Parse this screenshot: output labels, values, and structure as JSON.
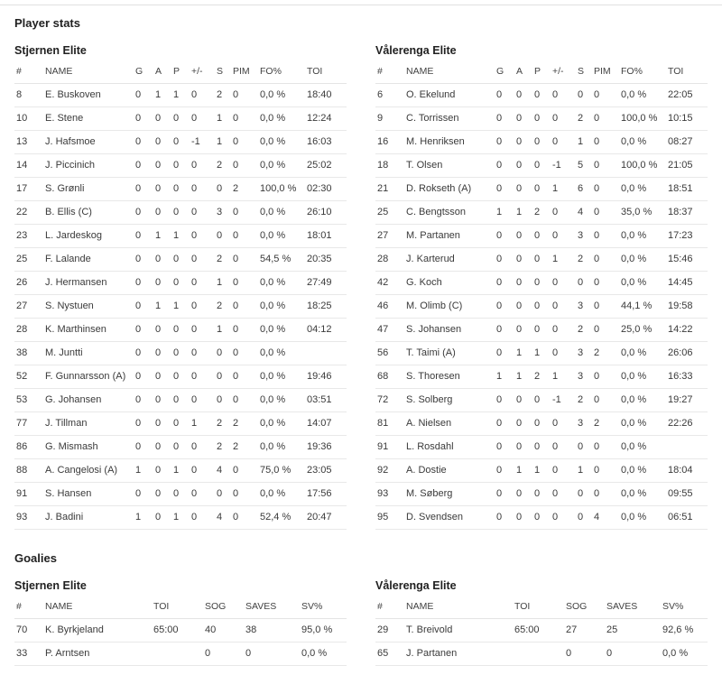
{
  "player_stats": {
    "title": "Player stats",
    "columns": [
      "#",
      "NAME",
      "G",
      "A",
      "P",
      "+/-",
      "S",
      "PIM",
      "FO%",
      "TOI"
    ],
    "teams": [
      {
        "name": "Stjernen Elite",
        "rows": [
          [
            "8",
            "E. Buskoven",
            "0",
            "1",
            "1",
            "0",
            "2",
            "0",
            "0,0 %",
            "18:40"
          ],
          [
            "10",
            "E. Stene",
            "0",
            "0",
            "0",
            "0",
            "1",
            "0",
            "0,0 %",
            "12:24"
          ],
          [
            "13",
            "J. Hafsmoe",
            "0",
            "0",
            "0",
            "-1",
            "1",
            "0",
            "0,0 %",
            "16:03"
          ],
          [
            "14",
            "J. Piccinich",
            "0",
            "0",
            "0",
            "0",
            "2",
            "0",
            "0,0 %",
            "25:02"
          ],
          [
            "17",
            "S. Grønli",
            "0",
            "0",
            "0",
            "0",
            "0",
            "2",
            "100,0 %",
            "02:30"
          ],
          [
            "22",
            "B. Ellis (C)",
            "0",
            "0",
            "0",
            "0",
            "3",
            "0",
            "0,0 %",
            "26:10"
          ],
          [
            "23",
            "L. Jardeskog",
            "0",
            "1",
            "1",
            "0",
            "0",
            "0",
            "0,0 %",
            "18:01"
          ],
          [
            "25",
            "F. Lalande",
            "0",
            "0",
            "0",
            "0",
            "2",
            "0",
            "54,5 %",
            "20:35"
          ],
          [
            "26",
            "J. Hermansen",
            "0",
            "0",
            "0",
            "0",
            "1",
            "0",
            "0,0 %",
            "27:49"
          ],
          [
            "27",
            "S. Nystuen",
            "0",
            "1",
            "1",
            "0",
            "2",
            "0",
            "0,0 %",
            "18:25"
          ],
          [
            "28",
            "K. Marthinsen",
            "0",
            "0",
            "0",
            "0",
            "1",
            "0",
            "0,0 %",
            "04:12"
          ],
          [
            "38",
            "M. Juntti",
            "0",
            "0",
            "0",
            "0",
            "0",
            "0",
            "0,0 %",
            ""
          ],
          [
            "52",
            "F. Gunnarsson (A)",
            "0",
            "0",
            "0",
            "0",
            "0",
            "0",
            "0,0 %",
            "19:46"
          ],
          [
            "53",
            "G. Johansen",
            "0",
            "0",
            "0",
            "0",
            "0",
            "0",
            "0,0 %",
            "03:51"
          ],
          [
            "77",
            "J. Tillman",
            "0",
            "0",
            "0",
            "1",
            "2",
            "2",
            "0,0 %",
            "14:07"
          ],
          [
            "86",
            "G. Mismash",
            "0",
            "0",
            "0",
            "0",
            "2",
            "2",
            "0,0 %",
            "19:36"
          ],
          [
            "88",
            "A. Cangelosi (A)",
            "1",
            "0",
            "1",
            "0",
            "4",
            "0",
            "75,0 %",
            "23:05"
          ],
          [
            "91",
            "S. Hansen",
            "0",
            "0",
            "0",
            "0",
            "0",
            "0",
            "0,0 %",
            "17:56"
          ],
          [
            "93",
            "J. Badini",
            "1",
            "0",
            "1",
            "0",
            "4",
            "0",
            "52,4 %",
            "20:47"
          ]
        ]
      },
      {
        "name": "Vålerenga Elite",
        "rows": [
          [
            "6",
            "O. Ekelund",
            "0",
            "0",
            "0",
            "0",
            "0",
            "0",
            "0,0 %",
            "22:05"
          ],
          [
            "9",
            "C. Torrissen",
            "0",
            "0",
            "0",
            "0",
            "2",
            "0",
            "100,0 %",
            "10:15"
          ],
          [
            "16",
            "M. Henriksen",
            "0",
            "0",
            "0",
            "0",
            "1",
            "0",
            "0,0 %",
            "08:27"
          ],
          [
            "18",
            "T. Olsen",
            "0",
            "0",
            "0",
            "-1",
            "5",
            "0",
            "100,0 %",
            "21:05"
          ],
          [
            "21",
            "D. Rokseth (A)",
            "0",
            "0",
            "0",
            "1",
            "6",
            "0",
            "0,0 %",
            "18:51"
          ],
          [
            "25",
            "C. Bengtsson",
            "1",
            "1",
            "2",
            "0",
            "4",
            "0",
            "35,0 %",
            "18:37"
          ],
          [
            "27",
            "M. Partanen",
            "0",
            "0",
            "0",
            "0",
            "3",
            "0",
            "0,0 %",
            "17:23"
          ],
          [
            "28",
            "J. Karterud",
            "0",
            "0",
            "0",
            "1",
            "2",
            "0",
            "0,0 %",
            "15:46"
          ],
          [
            "42",
            "G. Koch",
            "0",
            "0",
            "0",
            "0",
            "0",
            "0",
            "0,0 %",
            "14:45"
          ],
          [
            "46",
            "M. Olimb (C)",
            "0",
            "0",
            "0",
            "0",
            "3",
            "0",
            "44,1 %",
            "19:58"
          ],
          [
            "47",
            "S. Johansen",
            "0",
            "0",
            "0",
            "0",
            "2",
            "0",
            "25,0 %",
            "14:22"
          ],
          [
            "56",
            "T. Taimi (A)",
            "0",
            "1",
            "1",
            "0",
            "3",
            "2",
            "0,0 %",
            "26:06"
          ],
          [
            "68",
            "S. Thoresen",
            "1",
            "1",
            "2",
            "1",
            "3",
            "0",
            "0,0 %",
            "16:33"
          ],
          [
            "72",
            "S. Solberg",
            "0",
            "0",
            "0",
            "-1",
            "2",
            "0",
            "0,0 %",
            "19:27"
          ],
          [
            "81",
            "A. Nielsen",
            "0",
            "0",
            "0",
            "0",
            "3",
            "2",
            "0,0 %",
            "22:26"
          ],
          [
            "91",
            "L. Rosdahl",
            "0",
            "0",
            "0",
            "0",
            "0",
            "0",
            "0,0 %",
            ""
          ],
          [
            "92",
            "A. Dostie",
            "0",
            "1",
            "1",
            "0",
            "1",
            "0",
            "0,0 %",
            "18:04"
          ],
          [
            "93",
            "M. Søberg",
            "0",
            "0",
            "0",
            "0",
            "0",
            "0",
            "0,0 %",
            "09:55"
          ],
          [
            "95",
            "D. Svendsen",
            "0",
            "0",
            "0",
            "0",
            "0",
            "4",
            "0,0 %",
            "06:51"
          ]
        ]
      }
    ]
  },
  "goalies": {
    "title": "Goalies",
    "columns": [
      "#",
      "NAME",
      "TOI",
      "SOG",
      "SAVES",
      "SV%"
    ],
    "teams": [
      {
        "name": "Stjernen Elite",
        "rows": [
          [
            "70",
            "K. Byrkjeland",
            "65:00",
            "40",
            "38",
            "95,0 %"
          ],
          [
            "33",
            "P. Arntsen",
            "",
            "0",
            "0",
            "0,0 %"
          ]
        ]
      },
      {
        "name": "Vålerenga Elite",
        "rows": [
          [
            "29",
            "T. Breivold",
            "65:00",
            "27",
            "25",
            "92,6 %"
          ],
          [
            "65",
            "J. Partanen",
            "",
            "0",
            "0",
            "0,0 %"
          ]
        ]
      }
    ]
  }
}
